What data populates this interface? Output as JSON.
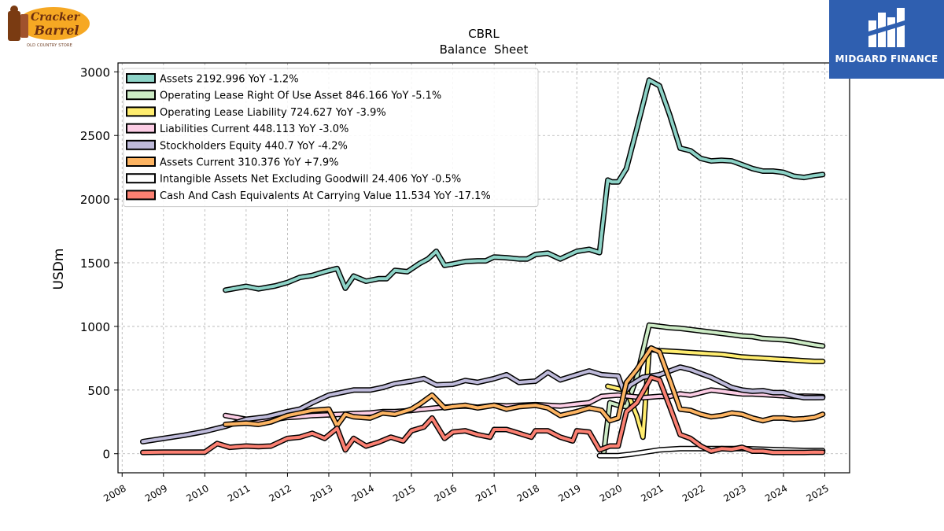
{
  "logos": {
    "left_tagline": "OLD COUNTRY STORE",
    "right_brand": "MIDGARD FINANCE"
  },
  "chart_data": {
    "type": "line",
    "title": "CBRL",
    "subtitle": "Balance  Sheet",
    "ylabel": "USDm",
    "xlabel": "",
    "xlim": [
      2007.9,
      2025.6
    ],
    "ylim": [
      -150,
      3070
    ],
    "xticks": [
      2008,
      2009,
      2010,
      2011,
      2012,
      2013,
      2014,
      2015,
      2016,
      2017,
      2018,
      2019,
      2020,
      2021,
      2022,
      2023,
      2024,
      2025
    ],
    "yticks": [
      0,
      500,
      1000,
      1500,
      2000,
      2500,
      3000
    ],
    "grid": true,
    "legend_position": "top-left",
    "series": [
      {
        "name": "Assets  2192.996 YoY -1.2%",
        "color": "#8dd3c7",
        "x": [
          2010.5,
          2011.0,
          2011.3,
          2011.7,
          2012.0,
          2012.3,
          2012.6,
          2012.9,
          2013.2,
          2013.4,
          2013.6,
          2013.9,
          2014.2,
          2014.4,
          2014.6,
          2014.9,
          2015.2,
          2015.4,
          2015.6,
          2015.8,
          2016.0,
          2016.3,
          2016.6,
          2016.8,
          2017.0,
          2017.3,
          2017.6,
          2017.8,
          2018.0,
          2018.3,
          2018.6,
          2018.8,
          2019.0,
          2019.3,
          2019.55,
          2019.75,
          2019.85,
          2020.0,
          2020.2,
          2020.45,
          2020.75,
          2021.0,
          2021.25,
          2021.5,
          2021.75,
          2022.0,
          2022.25,
          2022.5,
          2022.75,
          2023.0,
          2023.25,
          2023.5,
          2023.75,
          2024.0,
          2024.25,
          2024.5,
          2024.75,
          2024.95
        ],
        "values": [
          1285,
          1315,
          1295,
          1318,
          1345,
          1385,
          1400,
          1430,
          1455,
          1300,
          1395,
          1355,
          1375,
          1375,
          1440,
          1430,
          1495,
          1530,
          1590,
          1480,
          1490,
          1510,
          1515,
          1515,
          1545,
          1540,
          1530,
          1530,
          1565,
          1575,
          1530,
          1560,
          1590,
          1605,
          1580,
          2150,
          2135,
          2135,
          2240,
          2550,
          2935,
          2890,
          2660,
          2400,
          2380,
          2320,
          2300,
          2305,
          2300,
          2270,
          2240,
          2220,
          2220,
          2210,
          2180,
          2170,
          2185,
          2193
        ]
      },
      {
        "name": "Operating Lease Right Of Use Asset  846.166 YoY -5.1%",
        "color": "#ccebc5",
        "x": [
          2019.65,
          2019.8,
          2020.0,
          2020.2,
          2020.45,
          2020.75,
          2021.0,
          2021.25,
          2021.5,
          2021.75,
          2022.0,
          2022.25,
          2022.5,
          2022.75,
          2023.0,
          2023.25,
          2023.5,
          2023.75,
          2024.0,
          2024.25,
          2024.5,
          2024.75,
          2024.95
        ],
        "values": [
          0,
          400,
          380,
          370,
          600,
          1010,
          1000,
          990,
          985,
          975,
          965,
          955,
          945,
          935,
          925,
          920,
          905,
          900,
          895,
          885,
          870,
          855,
          846
        ]
      },
      {
        "name": "Operating Lease Liability  724.627 YoY -3.9%",
        "color": "#ffed6f",
        "x": [
          2019.75,
          2020.0,
          2020.2,
          2020.45,
          2020.6,
          2020.75,
          2021.0,
          2021.25,
          2021.5,
          2021.75,
          2022.0,
          2022.25,
          2022.5,
          2022.75,
          2023.0,
          2023.25,
          2023.5,
          2023.75,
          2024.0,
          2024.25,
          2024.5,
          2024.75,
          2024.95
        ],
        "values": [
          530,
          510,
          500,
          300,
          130,
          820,
          810,
          805,
          800,
          795,
          790,
          785,
          780,
          770,
          760,
          755,
          750,
          745,
          740,
          735,
          730,
          725,
          725
        ]
      },
      {
        "name": "Liabilities Current  448.113 YoY -3.0%",
        "color": "#fccde5",
        "x": [
          2010.5,
          2011.0,
          2011.5,
          2012.0,
          2012.3,
          2012.6,
          2013.0,
          2013.3,
          2013.6,
          2014.0,
          2014.3,
          2014.6,
          2015.0,
          2015.3,
          2015.6,
          2016.0,
          2016.3,
          2016.6,
          2017.0,
          2017.3,
          2017.6,
          2018.0,
          2018.3,
          2018.6,
          2019.0,
          2019.3,
          2019.6,
          2020.0,
          2020.3,
          2020.6,
          2021.0,
          2021.25,
          2021.5,
          2021.75,
          2022.0,
          2022.25,
          2022.5,
          2022.75,
          2023.0,
          2023.25,
          2023.5,
          2023.75,
          2024.0,
          2024.25,
          2024.5,
          2024.75,
          2024.95
        ],
        "values": [
          300,
          270,
          260,
          285,
          290,
          300,
          305,
          310,
          315,
          320,
          330,
          330,
          340,
          350,
          360,
          370,
          375,
          365,
          380,
          375,
          380,
          385,
          380,
          375,
          390,
          400,
          450,
          460,
          450,
          440,
          450,
          450,
          470,
          460,
          480,
          500,
          490,
          480,
          470,
          470,
          465,
          460,
          455,
          450,
          452,
          450,
          448
        ]
      },
      {
        "name": "Stockholders Equity  440.7 YoY -4.2%",
        "color": "#bebada",
        "x": [
          2008.5,
          2009.0,
          2009.5,
          2010.0,
          2010.5,
          2011.0,
          2011.5,
          2012.0,
          2012.3,
          2012.6,
          2013.0,
          2013.3,
          2013.6,
          2014.0,
          2014.3,
          2014.6,
          2015.0,
          2015.3,
          2015.6,
          2016.0,
          2016.3,
          2016.6,
          2017.0,
          2017.3,
          2017.6,
          2018.0,
          2018.3,
          2018.6,
          2019.0,
          2019.3,
          2019.6,
          2020.0,
          2020.15,
          2020.3,
          2020.6,
          2021.0,
          2021.25,
          2021.5,
          2021.75,
          2022.0,
          2022.25,
          2022.5,
          2022.75,
          2023.0,
          2023.25,
          2023.5,
          2023.75,
          2024.0,
          2024.25,
          2024.5,
          2024.75,
          2024.95
        ],
        "values": [
          95,
          120,
          145,
          175,
          215,
          270,
          290,
          330,
          350,
          400,
          460,
          480,
          500,
          500,
          520,
          550,
          570,
          590,
          540,
          545,
          575,
          560,
          590,
          620,
          560,
          570,
          640,
          580,
          620,
          650,
          620,
          610,
          480,
          540,
          600,
          620,
          650,
          680,
          660,
          630,
          600,
          560,
          520,
          500,
          490,
          495,
          480,
          480,
          455,
          440,
          440,
          441
        ]
      },
      {
        "name": "Assets Current  310.376 YoY +7.9%",
        "color": "#fdb462",
        "x": [
          2010.5,
          2011.0,
          2011.3,
          2011.6,
          2012.0,
          2012.3,
          2012.6,
          2013.0,
          2013.2,
          2013.4,
          2013.6,
          2014.0,
          2014.3,
          2014.6,
          2015.0,
          2015.2,
          2015.5,
          2015.8,
          2016.0,
          2016.3,
          2016.6,
          2017.0,
          2017.3,
          2017.6,
          2018.0,
          2018.3,
          2018.6,
          2019.0,
          2019.3,
          2019.6,
          2019.8,
          2020.0,
          2020.2,
          2020.45,
          2020.8,
          2021.0,
          2021.25,
          2021.5,
          2021.75,
          2022.0,
          2022.25,
          2022.5,
          2022.75,
          2023.0,
          2023.25,
          2023.5,
          2023.75,
          2024.0,
          2024.25,
          2024.5,
          2024.75,
          2024.95
        ],
        "values": [
          230,
          240,
          230,
          250,
          300,
          320,
          340,
          350,
          220,
          310,
          290,
          280,
          320,
          310,
          350,
          390,
          460,
          360,
          370,
          380,
          360,
          380,
          350,
          370,
          380,
          360,
          300,
          330,
          360,
          340,
          260,
          280,
          560,
          660,
          830,
          800,
          580,
          350,
          340,
          310,
          290,
          300,
          320,
          310,
          280,
          260,
          280,
          280,
          270,
          275,
          285,
          310
        ]
      },
      {
        "name": "Intangible Assets Net Excluding Goodwill  24.406 YoY -0.5%",
        "color": "#ffffff",
        "x": [
          2019.55,
          2020.0,
          2020.3,
          2020.6,
          2021.0,
          2021.5,
          2022.0,
          2022.5,
          2023.0,
          2023.5,
          2024.0,
          2024.5,
          2024.95
        ],
        "values": [
          -15,
          -15,
          -5,
          10,
          30,
          40,
          40,
          40,
          40,
          35,
          30,
          25,
          24
        ]
      },
      {
        "name": "Cash And Cash Equivalents At Carrying Value  11.534 YoY -17.1%",
        "color": "#fb8072",
        "x": [
          2008.5,
          2009.0,
          2009.5,
          2010.0,
          2010.3,
          2010.6,
          2011.0,
          2011.3,
          2011.6,
          2012.0,
          2012.3,
          2012.6,
          2012.9,
          2013.2,
          2013.4,
          2013.6,
          2013.9,
          2014.2,
          2014.5,
          2014.8,
          2015.0,
          2015.3,
          2015.5,
          2015.8,
          2016.0,
          2016.3,
          2016.6,
          2016.9,
          2017.0,
          2017.3,
          2017.6,
          2017.9,
          2018.0,
          2018.3,
          2018.6,
          2018.9,
          2019.0,
          2019.3,
          2019.55,
          2019.8,
          2020.0,
          2020.2,
          2020.45,
          2020.8,
          2021.0,
          2021.25,
          2021.5,
          2021.75,
          2022.0,
          2022.25,
          2022.5,
          2022.75,
          2023.0,
          2023.25,
          2023.5,
          2023.75,
          2024.0,
          2024.25,
          2024.5,
          2024.75,
          2024.95
        ],
        "values": [
          10,
          12,
          12,
          12,
          80,
          50,
          60,
          55,
          60,
          120,
          130,
          160,
          120,
          200,
          30,
          120,
          60,
          90,
          130,
          100,
          180,
          210,
          280,
          120,
          170,
          180,
          150,
          130,
          190,
          190,
          160,
          130,
          180,
          180,
          130,
          100,
          180,
          170,
          30,
          60,
          60,
          330,
          400,
          600,
          580,
          370,
          150,
          120,
          60,
          20,
          40,
          35,
          50,
          20,
          20,
          10,
          10,
          10,
          10,
          12,
          11.5
        ]
      }
    ]
  }
}
